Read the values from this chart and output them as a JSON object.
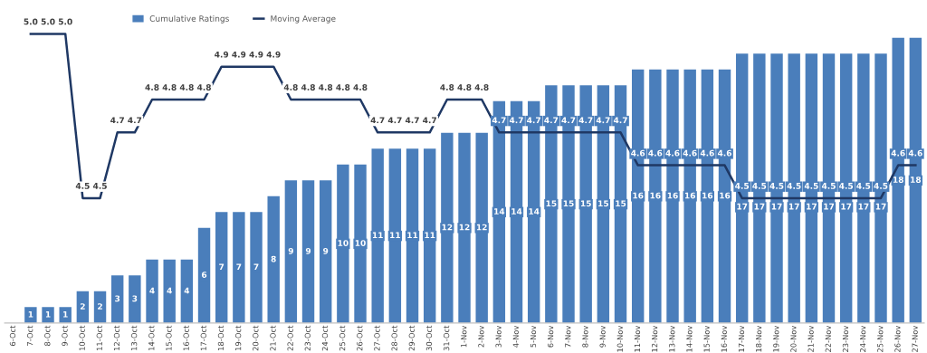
{
  "chart_data": {
    "type": "bar",
    "categories": [
      "6-Oct",
      "7-Oct",
      "8-Oct",
      "9-Oct",
      "10-Oct",
      "11-Oct",
      "12-Oct",
      "13-Oct",
      "14-Oct",
      "15-Oct",
      "16-Oct",
      "17-Oct",
      "18-Oct",
      "19-Oct",
      "20-Oct",
      "21-Oct",
      "22-Oct",
      "23-Oct",
      "24-Oct",
      "25-Oct",
      "26-Oct",
      "27-Oct",
      "28-Oct",
      "29-Oct",
      "30-Oct",
      "31-Oct",
      "1-Nov",
      "2-Nov",
      "3-Nov",
      "4-Nov",
      "5-Nov",
      "6-Nov",
      "7-Nov",
      "8-Nov",
      "9-Nov",
      "10-Nov",
      "11-Nov",
      "12-Nov",
      "13-Nov",
      "14-Nov",
      "15-Nov",
      "16-Nov",
      "17-Nov",
      "18-Nov",
      "19-Nov",
      "20-Nov",
      "21-Nov",
      "22-Nov",
      "23-Nov",
      "24-Nov",
      "25-Nov",
      "26-Nov",
      "27-Nov"
    ],
    "series": [
      {
        "name": "Cumulative Ratings",
        "color": "#4a7ebb",
        "values": [
          null,
          1,
          1,
          1,
          2,
          2,
          3,
          3,
          4,
          4,
          4,
          6,
          7,
          7,
          7,
          8,
          9,
          9,
          9,
          10,
          10,
          11,
          11,
          11,
          11,
          12,
          12,
          12,
          14,
          14,
          14,
          15,
          15,
          15,
          15,
          15,
          16,
          16,
          16,
          16,
          16,
          16,
          17,
          17,
          17,
          17,
          17,
          17,
          17,
          17,
          17,
          18,
          18
        ]
      },
      {
        "name": "Moving Average",
        "type": "line",
        "axis": "y2",
        "color": "#1f3864",
        "values": [
          null,
          5.0,
          5.0,
          5.0,
          4.5,
          4.5,
          4.7,
          4.7,
          4.8,
          4.8,
          4.8,
          4.8,
          4.9,
          4.9,
          4.9,
          4.9,
          4.8,
          4.8,
          4.8,
          4.8,
          4.8,
          4.7,
          4.7,
          4.7,
          4.7,
          4.8,
          4.8,
          4.8,
          4.7,
          4.7,
          4.7,
          4.7,
          4.7,
          4.7,
          4.7,
          4.7,
          4.6,
          4.6,
          4.6,
          4.6,
          4.6,
          4.6,
          4.5,
          4.5,
          4.5,
          4.5,
          4.5,
          4.5,
          4.5,
          4.5,
          4.5,
          4.6,
          4.6
        ],
        "value_labels": [
          null,
          "5.0",
          "5.0",
          "5.0",
          "4.5",
          "4.5",
          "4.7",
          "4.7",
          "4.8",
          "4.8",
          "4.8",
          "4.8",
          "4.9",
          "4.9",
          "4.9",
          "4.9",
          "4.8",
          "4.8",
          "4.8",
          "4.8",
          "4.8",
          "4.7",
          "4.7",
          "4.7",
          "4.7",
          "4.8",
          "4.8",
          "4.8",
          "4.7",
          "4.7",
          "4.7",
          "4.7",
          "4.7",
          "4.7",
          "4.7",
          "4.7",
          "4.6",
          "4.6",
          "4.6",
          "4.6",
          "4.6",
          "4.6",
          "4.5",
          "4.5",
          "4.5",
          "4.5",
          "4.5",
          "4.5",
          "4.5",
          "4.5",
          "4.5",
          "4.6",
          "4.6"
        ]
      }
    ],
    "ylim": [
      0,
      19.5
    ],
    "y2lim": [
      4.12,
      5.06
    ],
    "tick_labels": "x",
    "data_labels": true,
    "legend": "top",
    "grid": false,
    "marker": "none",
    "line_style": "solid"
  }
}
